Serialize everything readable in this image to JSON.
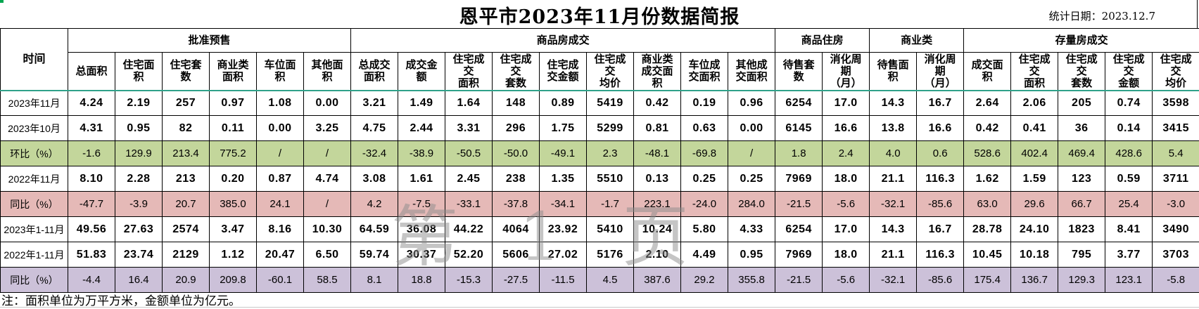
{
  "title": "恩平市2023年11月份数据简报",
  "stat_date": "统计日期：2023.12.7",
  "note": "注：面积单位为万平方米，金额单位为亿元。",
  "watermark": "第 1 页",
  "colors": {
    "mom_row_bg": "#c3d69b",
    "yoy_row_bg": "#e5b9b7",
    "yoy2_row_bg": "#ccc1d9",
    "header_divider": "#2fa189",
    "corner_mark": "#00a54f"
  },
  "table": {
    "time_header": "时间",
    "groups": [
      {
        "label": "批准预售",
        "cols": [
          "总面积",
          "住宅面\n积",
          "住宅套\n数",
          "商业类\n面积",
          "车位面\n积",
          "其他面\n积"
        ]
      },
      {
        "label": "商品房成交",
        "cols": [
          "总成交\n面积",
          "成交金\n额",
          "住宅成\n交\n面积",
          "住宅成\n交\n套数",
          "住宅成\n交金额",
          "住宅成\n交\n均价",
          "商业类\n成交面\n积",
          "车位成\n交面积",
          "其他成\n交面积"
        ]
      },
      {
        "label": "商品住房",
        "cols": [
          "待售套\n数",
          "消化周\n期\n（月）"
        ]
      },
      {
        "label": "商业类",
        "cols": [
          "待售面\n积",
          "消化周\n期\n（月）"
        ]
      },
      {
        "label": "存量房成交",
        "cols": [
          "成交面\n积",
          "住宅成\n交\n面积",
          "住宅成\n交\n套数",
          "住宅成\n交\n金额",
          "住宅成\n交\n均价"
        ]
      }
    ],
    "rows": [
      {
        "label": "2023年11月",
        "type": "data",
        "values": [
          "4.24",
          "2.19",
          "257",
          "0.97",
          "1.08",
          "0.00",
          "3.21",
          "1.49",
          "1.64",
          "148",
          "0.89",
          "5419",
          "0.42",
          "0.19",
          "0.96",
          "6254",
          "17.0",
          "14.3",
          "16.7",
          "2.64",
          "2.06",
          "205",
          "0.74",
          "3598"
        ]
      },
      {
        "label": "2023年10月",
        "type": "data",
        "values": [
          "4.31",
          "0.95",
          "82",
          "0.11",
          "0.00",
          "3.25",
          "4.75",
          "2.44",
          "3.31",
          "296",
          "1.75",
          "5299",
          "0.81",
          "0.63",
          "0.00",
          "6145",
          "16.6",
          "13.8",
          "16.6",
          "0.42",
          "0.41",
          "36",
          "0.14",
          "3415"
        ]
      },
      {
        "label": "环比（%）",
        "type": "mom",
        "values": [
          "-1.6",
          "129.9",
          "213.4",
          "775.2",
          "/",
          "/",
          "-32.4",
          "-38.9",
          "-50.5",
          "-50.0",
          "-49.1",
          "2.3",
          "-48.1",
          "-69.8",
          "/",
          "1.8",
          "2.4",
          "4.0",
          "0.6",
          "528.6",
          "402.4",
          "469.4",
          "428.6",
          "5.4"
        ]
      },
      {
        "label": "2022年11月",
        "type": "data",
        "values": [
          "8.10",
          "2.28",
          "213",
          "0.20",
          "0.87",
          "4.74",
          "3.08",
          "1.61",
          "2.45",
          "238",
          "1.35",
          "5510",
          "0.13",
          "0.25",
          "0.25",
          "7969",
          "18.0",
          "21.1",
          "116.3",
          "1.62",
          "1.59",
          "123",
          "0.59",
          "3711"
        ]
      },
      {
        "label": "同比（%）",
        "type": "yoy",
        "values": [
          "-47.7",
          "-3.9",
          "20.7",
          "385.0",
          "24.1",
          "/",
          "4.2",
          "-7.5",
          "-33.1",
          "-37.8",
          "-34.1",
          "-1.7",
          "223.1",
          "-24.0",
          "284.0",
          "-21.5",
          "-5.6",
          "-32.1",
          "-85.6",
          "63.0",
          "29.6",
          "66.7",
          "25.4",
          "-3.0"
        ]
      },
      {
        "label": "2023年1-11月",
        "type": "data",
        "values": [
          "49.56",
          "27.63",
          "2574",
          "3.47",
          "8.16",
          "10.30",
          "64.59",
          "36.08",
          "44.22",
          "4064",
          "23.92",
          "5410",
          "10.24",
          "5.80",
          "4.33",
          "6254",
          "17.0",
          "14.3",
          "16.7",
          "28.78",
          "24.10",
          "1823",
          "8.41",
          "3490"
        ]
      },
      {
        "label": "2022年1-11月",
        "type": "data",
        "values": [
          "51.83",
          "23.74",
          "2129",
          "1.12",
          "20.47",
          "6.50",
          "59.74",
          "30.37",
          "52.20",
          "5606",
          "27.02",
          "5176",
          "2.10",
          "4.49",
          "0.95",
          "7969",
          "18.0",
          "21.1",
          "116.3",
          "10.45",
          "10.18",
          "795",
          "3.77",
          "3703"
        ]
      },
      {
        "label": "同比（%）",
        "type": "yoy2",
        "values": [
          "-4.4",
          "16.4",
          "20.9",
          "209.8",
          "-60.1",
          "58.5",
          "8.1",
          "18.8",
          "-15.3",
          "-27.5",
          "-11.5",
          "4.5",
          "387.6",
          "29.2",
          "355.8",
          "-21.5",
          "-5.6",
          "-32.1",
          "-85.6",
          "175.4",
          "136.7",
          "129.3",
          "123.1",
          "-5.8"
        ]
      }
    ],
    "layout": {
      "time_col_width": 96,
      "data_col_width": 67
    }
  }
}
